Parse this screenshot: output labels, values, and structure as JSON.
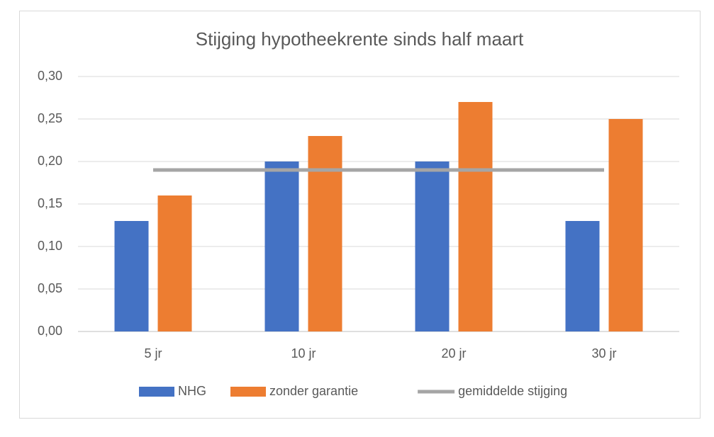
{
  "chart_data": {
    "type": "bar",
    "title": "Stijging hypotheekrente sinds half maart",
    "categories": [
      "5 jr",
      "10 jr",
      "20 jr",
      "30 jr"
    ],
    "series": [
      {
        "name": "NHG",
        "color": "#4472c4",
        "values": [
          0.13,
          0.2,
          0.2,
          0.13
        ]
      },
      {
        "name": "zonder garantie",
        "color": "#ed7d31",
        "values": [
          0.16,
          0.23,
          0.27,
          0.25
        ]
      },
      {
        "name": "gemiddelde stijging",
        "color": "#a5a5a5",
        "type": "line",
        "values": [
          0.19,
          0.19,
          0.19,
          0.19
        ]
      }
    ],
    "ylim": [
      0,
      0.3
    ],
    "yticks": [
      {
        "value": 0,
        "label": "0,00"
      },
      {
        "value": 0.05,
        "label": "0,05"
      },
      {
        "value": 0.1,
        "label": "0,10"
      },
      {
        "value": 0.15,
        "label": "0,15"
      },
      {
        "value": 0.2,
        "label": "0,20"
      },
      {
        "value": 0.25,
        "label": "0,25"
      },
      {
        "value": 0.3,
        "label": "0,30"
      }
    ],
    "grid": true,
    "legend": "bottom"
  }
}
